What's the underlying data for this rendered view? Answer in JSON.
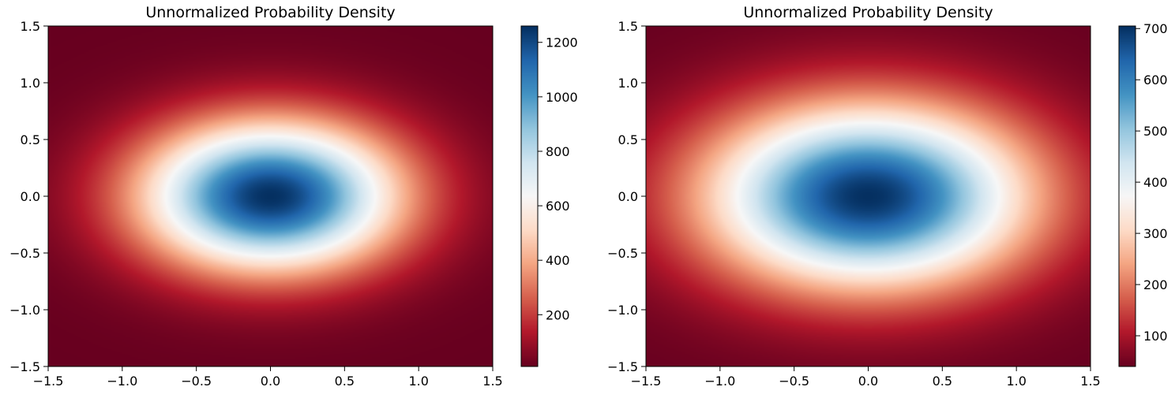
{
  "chart_data": [
    {
      "type": "heatmap",
      "title": "Unnormalized Probability Density",
      "xlabel": "",
      "ylabel": "",
      "xlim": [
        -1.5,
        1.5
      ],
      "ylim": [
        -1.5,
        1.5
      ],
      "x_ticks": [
        -1.5,
        -1.0,
        -0.5,
        0.0,
        0.5,
        1.0,
        1.5
      ],
      "y_ticks": [
        -1.5,
        -1.0,
        -0.5,
        0.0,
        0.5,
        1.0,
        1.5
      ],
      "x_tick_labels": [
        "−1.5",
        "−1.0",
        "−0.5",
        "0.0",
        "0.5",
        "1.0",
        "1.5"
      ],
      "y_tick_labels": [
        "−1.5",
        "−1.0",
        "−0.5",
        "0.0",
        "0.5",
        "1.0",
        "1.5"
      ],
      "colormap": "RdBu",
      "density": {
        "peak": 1260,
        "floor": 10,
        "sigma_x": 0.6,
        "sigma_y": 0.45,
        "center": [
          0.0,
          0.0
        ]
      },
      "colorbar": {
        "range": [
          10,
          1260
        ],
        "ticks": [
          200,
          400,
          600,
          800,
          1000,
          1200
        ],
        "tick_labels": [
          "200",
          "400",
          "600",
          "800",
          "1000",
          "1200"
        ]
      }
    },
    {
      "type": "heatmap",
      "title": "Unnormalized Probability Density",
      "xlabel": "",
      "ylabel": "",
      "xlim": [
        -1.5,
        1.5
      ],
      "ylim": [
        -1.5,
        1.5
      ],
      "x_ticks": [
        -1.5,
        -1.0,
        -0.5,
        0.0,
        0.5,
        1.0,
        1.5
      ],
      "y_ticks": [
        -1.5,
        -1.0,
        -0.5,
        0.0,
        0.5,
        1.0,
        1.5
      ],
      "x_tick_labels": [
        "−1.5",
        "−1.0",
        "−0.5",
        "0.0",
        "0.5",
        "1.0",
        "1.5"
      ],
      "y_tick_labels": [
        "−1.5",
        "−1.0",
        "−0.5",
        "0.0",
        "0.5",
        "1.0",
        "1.5"
      ],
      "colormap": "RdBu",
      "density": {
        "peak": 705,
        "floor": 40,
        "sigma_x": 0.75,
        "sigma_y": 0.55,
        "center": [
          0.0,
          0.0
        ]
      },
      "colorbar": {
        "range": [
          40,
          705
        ],
        "ticks": [
          100,
          200,
          300,
          400,
          500,
          600,
          700
        ],
        "tick_labels": [
          "100",
          "200",
          "300",
          "400",
          "500",
          "600",
          "700"
        ]
      }
    }
  ]
}
